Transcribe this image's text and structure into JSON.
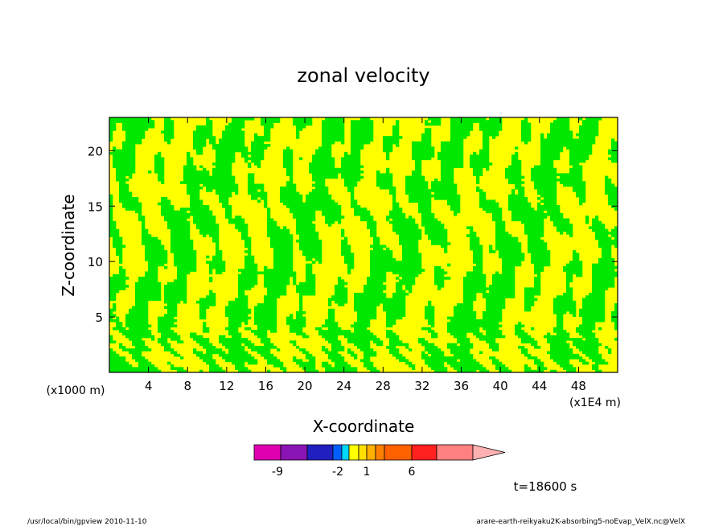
{
  "chart_data": {
    "type": "heatmap",
    "title": "zonal velocity",
    "xlabel": "X-coordinate",
    "ylabel": "Z-coordinate",
    "x_unit": "(x1E4 m)",
    "y_unit": "(x1000 m)",
    "xlim": [
      0,
      52
    ],
    "ylim": [
      0,
      23
    ],
    "x_ticks": [
      4,
      8,
      12,
      16,
      20,
      24,
      28,
      32,
      36,
      40,
      44,
      48
    ],
    "y_ticks": [
      5,
      10,
      15,
      20
    ],
    "x_tick_labels": [
      "4",
      "8",
      "12",
      "16",
      "20",
      "24",
      "28",
      "32",
      "36",
      "40",
      "44",
      "48"
    ],
    "y_tick_labels": [
      "5",
      "10",
      "15",
      "20"
    ],
    "colorbar": {
      "colors": [
        "#e000b0",
        "#8a14b4",
        "#2020c0",
        "#0000a0",
        "#0060ff",
        "#00d8ff",
        "#ffff00",
        "#ffe000",
        "#ffb000",
        "#ff8000",
        "#ff6000",
        "#ff2020",
        "#ff8080",
        "#ffb0b0"
      ],
      "labels": [
        {
          "text": "-9",
          "value": -9
        },
        {
          "text": "-2",
          "value": -2
        },
        {
          "text": "1",
          "value": 1
        },
        {
          "text": "6",
          "value": 6
        }
      ]
    },
    "dominant_colors": [
      "#00e800",
      "#ffff00"
    ],
    "time_label": "t=18600 s"
  },
  "footer": {
    "left": "/usr/local/bin/gpview   2010-11-10",
    "right": "arare-earth-reikyaku2K-absorbing5-noEvap_VelX.nc@VelX"
  }
}
